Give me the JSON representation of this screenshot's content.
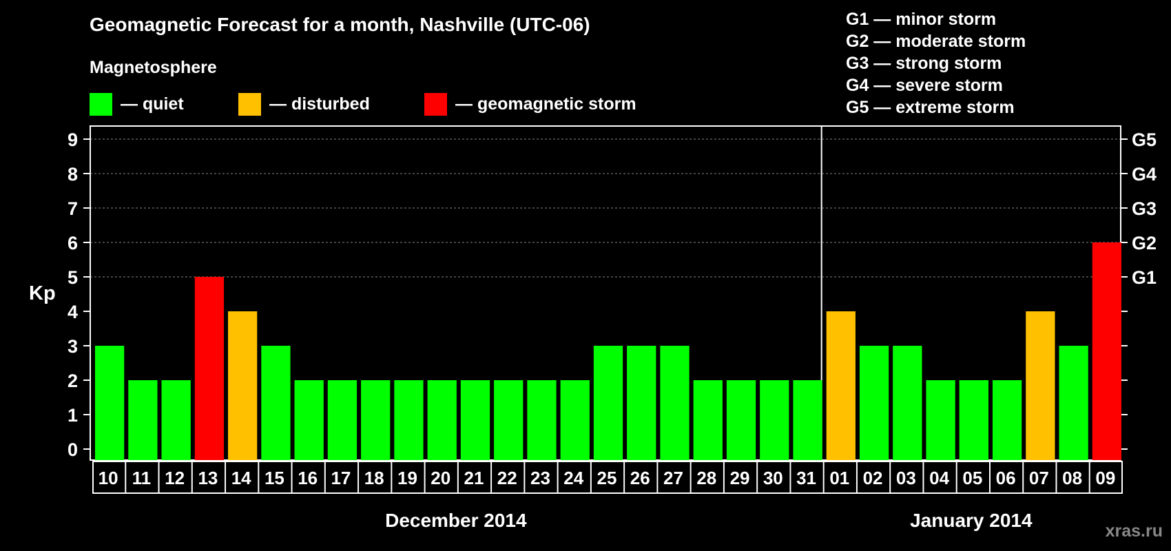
{
  "title": "Geomagnetic Forecast for a month, Nashville (UTC-06)",
  "subtitle": "Magnetosphere",
  "legend": [
    {
      "label": "— quiet",
      "color": "#00ff00"
    },
    {
      "label": "— disturbed",
      "color": "#ffc000"
    },
    {
      "label": "— geomagnetic storm",
      "color": "#ff0000"
    }
  ],
  "storm_scale": [
    "G1 — minor storm",
    "G2 — moderate storm",
    "G3 — strong storm",
    "G4 — severe storm",
    "G5 — extreme storm"
  ],
  "watermark": "xras.ru",
  "chart_data": {
    "type": "bar",
    "ylabel": "Kp",
    "ylim": [
      0,
      9
    ],
    "y_ticks": [
      "0",
      "1",
      "2",
      "3",
      "4",
      "5",
      "6",
      "7",
      "8",
      "9"
    ],
    "right_ticks": [
      {
        "value": 5,
        "label": "G1"
      },
      {
        "value": 6,
        "label": "G2"
      },
      {
        "value": 7,
        "label": "G3"
      },
      {
        "value": 8,
        "label": "G4"
      },
      {
        "value": 9,
        "label": "G5"
      }
    ],
    "grid": "horizontal dashed",
    "categories": [
      "10",
      "11",
      "12",
      "13",
      "14",
      "15",
      "16",
      "17",
      "18",
      "19",
      "20",
      "21",
      "22",
      "23",
      "24",
      "25",
      "26",
      "27",
      "28",
      "29",
      "30",
      "31",
      "01",
      "02",
      "03",
      "04",
      "05",
      "06",
      "07",
      "08",
      "09"
    ],
    "values": [
      3,
      2,
      2,
      5,
      4,
      3,
      2,
      2,
      2,
      2,
      2,
      2,
      2,
      2,
      2,
      3,
      3,
      3,
      2,
      2,
      2,
      2,
      4,
      3,
      3,
      2,
      2,
      2,
      4,
      3,
      6
    ],
    "colors": {
      "quiet": "#00ff00",
      "disturbed": "#ffc000",
      "storm": "#ff0000"
    },
    "bar_levels": [
      "quiet",
      "quiet",
      "quiet",
      "storm",
      "disturbed",
      "quiet",
      "quiet",
      "quiet",
      "quiet",
      "quiet",
      "quiet",
      "quiet",
      "quiet",
      "quiet",
      "quiet",
      "quiet",
      "quiet",
      "quiet",
      "quiet",
      "quiet",
      "quiet",
      "quiet",
      "disturbed",
      "quiet",
      "quiet",
      "quiet",
      "quiet",
      "quiet",
      "disturbed",
      "quiet",
      "storm"
    ],
    "month_groups": [
      {
        "label": "December 2014",
        "count": 22
      },
      {
        "label": "January 2014",
        "count": 9
      }
    ]
  }
}
